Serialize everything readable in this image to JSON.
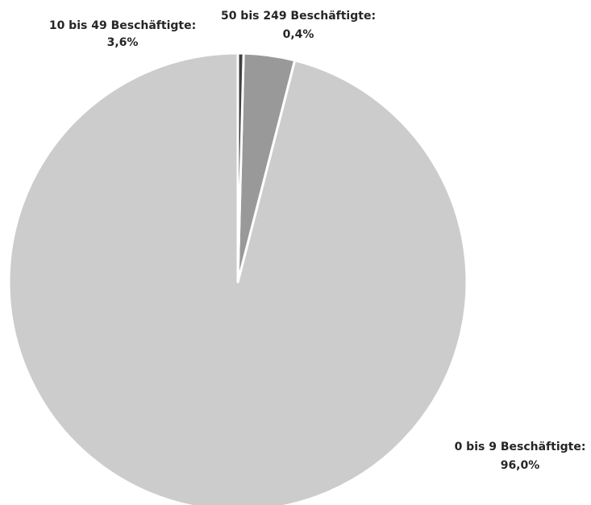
{
  "chart_data": {
    "type": "pie",
    "title": "",
    "slices": [
      {
        "label": "0 bis 9 Beschäftigte:",
        "value_text": "96,0%",
        "value": 96.0,
        "color": "#cccccc"
      },
      {
        "label": "10 bis 49 Beschäftigte:",
        "value_text": "3,6%",
        "value": 3.6,
        "color": "#999999"
      },
      {
        "label": "50 bis 249 Beschäftigte:",
        "value_text": "0,4%",
        "value": 0.4,
        "color": "#404040"
      }
    ],
    "start_angle": "12 o'clock",
    "direction": "counterclockwise",
    "legend": "none"
  }
}
